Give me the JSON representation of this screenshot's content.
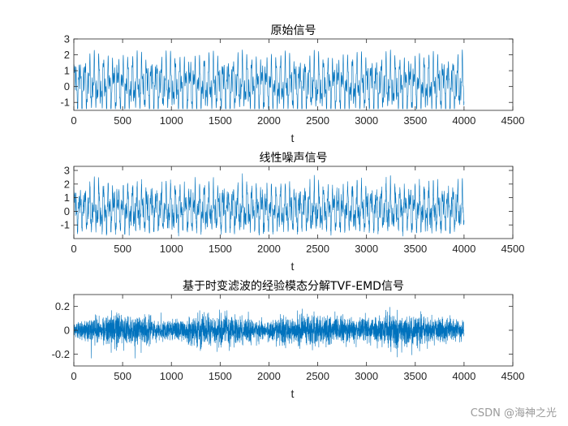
{
  "watermark": "CSDN @海神之光",
  "line_color": "#0072BD",
  "chart_data": [
    {
      "type": "line",
      "title": "原始信号",
      "xlabel": "t",
      "ylabel": "",
      "xlim": [
        0,
        4500
      ],
      "ylim": [
        -1.5,
        3
      ],
      "xticks": [
        0,
        500,
        1000,
        1500,
        2000,
        2500,
        3000,
        3500,
        4000,
        4500
      ],
      "yticks": [
        -1,
        0,
        1,
        2,
        3
      ],
      "grid": false,
      "series": [
        {
          "x_range": [
            1,
            4000
          ],
          "min": -1.4,
          "max": 3.0,
          "points": 4000,
          "form": "periodic multi-tone signal"
        }
      ]
    },
    {
      "type": "line",
      "title": "线性噪声信号",
      "xlabel": "t",
      "ylabel": "",
      "xlim": [
        0,
        4500
      ],
      "ylim": [
        -2,
        3.3
      ],
      "xticks": [
        0,
        500,
        1000,
        1500,
        2000,
        2500,
        3000,
        3500,
        4000,
        4500
      ],
      "yticks": [
        -1,
        0,
        1,
        2,
        3
      ],
      "grid": false,
      "series": [
        {
          "x_range": [
            1,
            4000
          ],
          "min": -1.9,
          "max": 3.3,
          "points": 4000,
          "form": "original signal plus noise"
        }
      ]
    },
    {
      "type": "line",
      "title": "基于时变滤波的经验模态分解TVF-EMD信号",
      "xlabel": "t",
      "ylabel": "",
      "xlim": [
        0,
        4500
      ],
      "ylim": [
        -0.3,
        0.3
      ],
      "xticks": [
        0,
        500,
        1000,
        1500,
        2000,
        2500,
        3000,
        3500,
        4000,
        4500
      ],
      "yticks": [
        -0.2,
        0,
        0.2
      ],
      "grid": false,
      "series": [
        {
          "x_range": [
            1,
            4000
          ],
          "min": -0.28,
          "max": 0.27,
          "points": 4000,
          "form": "noise-like residual component"
        }
      ]
    }
  ]
}
